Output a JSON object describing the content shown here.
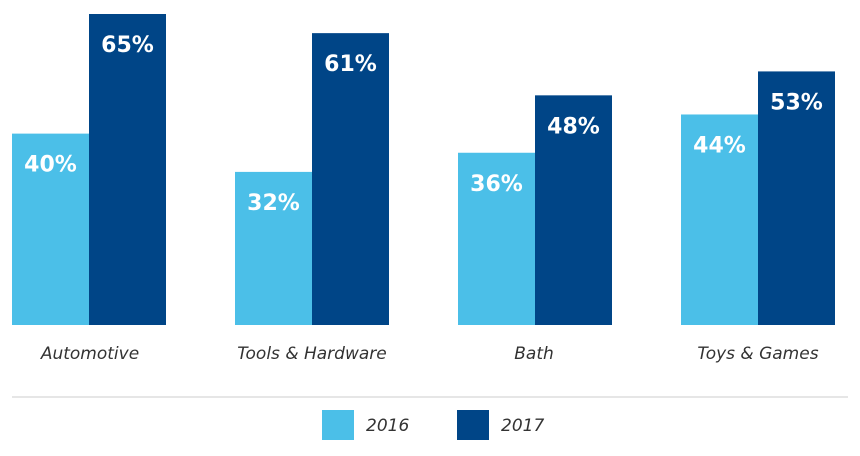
{
  "chart_data": {
    "type": "bar",
    "categories": [
      "Automotive",
      "Tools & Hardware",
      "Bath",
      "Toys & Games"
    ],
    "series": [
      {
        "name": "2016",
        "values": [
          40,
          32,
          36,
          44
        ],
        "labels": [
          "40%",
          "32%",
          "36%",
          "44%"
        ],
        "color": "#4bbfe8"
      },
      {
        "name": "2017",
        "values": [
          65,
          61,
          48,
          53
        ],
        "labels": [
          "65%",
          "61%",
          "48%",
          "53%"
        ],
        "color": "#004587"
      }
    ],
    "title": "",
    "xlabel": "",
    "ylabel": "",
    "ylim": [
      0,
      65
    ],
    "grid": false,
    "legend": "bottom"
  }
}
